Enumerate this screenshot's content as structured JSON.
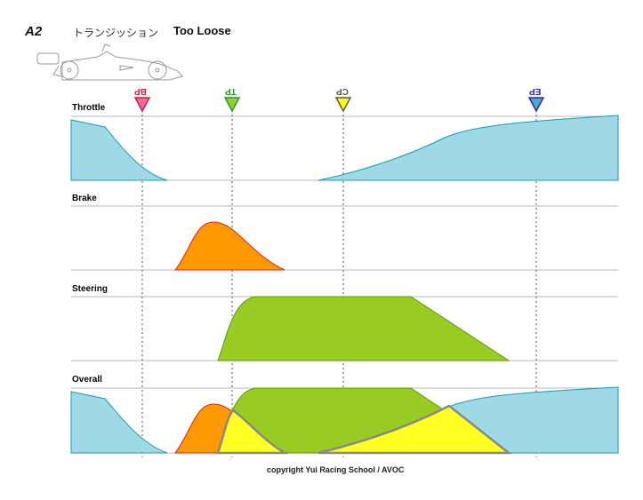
{
  "header": {
    "code": "A2",
    "title_jp": "トランジッション",
    "title": "Too Loose"
  },
  "panels": {
    "throttle": "Throttle",
    "brake": "Brake",
    "steering": "Steering",
    "overall": "Overall"
  },
  "markers": [
    {
      "label": "BP",
      "color": "#f06aa0",
      "text_color": "#d0203a"
    },
    {
      "label": "TP",
      "color": "#99cc33",
      "text_color": "#2a9a2a"
    },
    {
      "label": "CP",
      "color": "#ffff00",
      "text_color": "#555555"
    },
    {
      "label": "EP",
      "color": "#4fa8d0",
      "text_color": "#2a2a9a"
    }
  ],
  "colors": {
    "throttle": "#9fd9e6",
    "brake": "#ff9900",
    "steering": "#99cc22",
    "overlap": "#ffff22"
  },
  "footer": "copyright  Yui Racing School / AVOC"
}
